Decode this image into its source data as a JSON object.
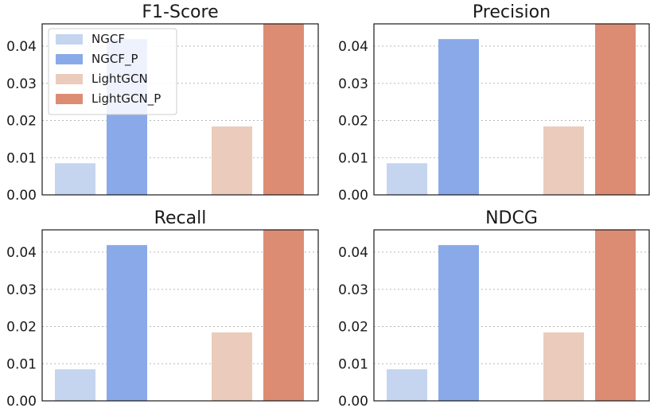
{
  "chart_data": [
    {
      "type": "bar",
      "title": "F1-Score",
      "categories": [
        "NGCF",
        "NGCF_P",
        "LightGCN",
        "LightGCN_P"
      ],
      "values": [
        0.0085,
        0.0419,
        0.0184,
        0.0459
      ],
      "ylim": [
        0,
        0.046
      ],
      "yticks": [
        "0.00",
        "0.01",
        "0.02",
        "0.03",
        "0.04"
      ],
      "legend": "top-left",
      "grid": "y"
    },
    {
      "type": "bar",
      "title": "Precision",
      "categories": [
        "NGCF",
        "NGCF_P",
        "LightGCN",
        "LightGCN_P"
      ],
      "values": [
        0.0085,
        0.0419,
        0.0184,
        0.0459
      ],
      "ylim": [
        0,
        0.046
      ],
      "yticks": [
        "0.00",
        "0.01",
        "0.02",
        "0.03",
        "0.04"
      ],
      "grid": "y"
    },
    {
      "type": "bar",
      "title": "Recall",
      "categories": [
        "NGCF",
        "NGCF_P",
        "LightGCN",
        "LightGCN_P"
      ],
      "values": [
        0.0085,
        0.0419,
        0.0184,
        0.0459
      ],
      "ylim": [
        0,
        0.046
      ],
      "yticks": [
        "0.00",
        "0.01",
        "0.02",
        "0.03",
        "0.04"
      ],
      "grid": "y"
    },
    {
      "type": "bar",
      "title": "NDCG",
      "categories": [
        "NGCF",
        "NGCF_P",
        "LightGCN",
        "LightGCN_P"
      ],
      "values": [
        0.0085,
        0.0419,
        0.0184,
        0.0459
      ],
      "ylim": [
        0,
        0.046
      ],
      "yticks": [
        "0.00",
        "0.01",
        "0.02",
        "0.03",
        "0.04"
      ],
      "grid": "y"
    }
  ],
  "legend": {
    "items": [
      "NGCF",
      "NGCF_P",
      "LightGCN",
      "LightGCN_P"
    ]
  },
  "colors": {
    "NGCF": "#c5d5ef",
    "NGCF_P": "#8aa9e8",
    "LightGCN": "#ebccbc",
    "LightGCN_P": "#dd8c74",
    "grid": "#b8b8b8",
    "frame": "#1a1a1a"
  }
}
